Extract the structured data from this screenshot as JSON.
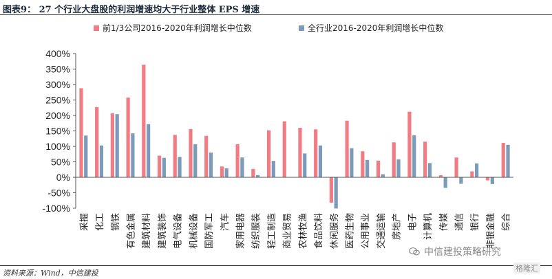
{
  "header": {
    "title": "图表9： 27 个行业大盘股的利润增速均大于行业整体 EPS 增速"
  },
  "footer": {
    "source": "资料来源：Wind，中信建投",
    "watermark": "中信建投策略研究",
    "gelonghui": "格隆汇"
  },
  "colors": {
    "series1": "#f27c84",
    "series2": "#7b9bb8"
  },
  "chart_data": {
    "type": "bar",
    "title": "",
    "xlabel": "",
    "ylabel": "",
    "ylim": [
      -100,
      400
    ],
    "yticks": [
      -100,
      -50,
      0,
      50,
      100,
      150,
      200,
      250,
      300,
      350,
      400
    ],
    "ytick_labels": [
      "-100%",
      "-50%",
      "0%",
      "50%",
      "100%",
      "150%",
      "200%",
      "250%",
      "300%",
      "350%",
      "400%"
    ],
    "grid": false,
    "legend_position": "top",
    "categories": [
      "采掘",
      "化工",
      "钢铁",
      "有色金属",
      "建筑材料",
      "建筑装饰",
      "电气设备",
      "机械设备",
      "国防军工",
      "汽车",
      "家用电器",
      "纺织服装",
      "轻工制造",
      "商业贸易",
      "农林牧渔",
      "食品饮料",
      "休闲服务",
      "医药生物",
      "公用事业",
      "交通运输",
      "房地产",
      "电子",
      "计算机",
      "传媒",
      "通信",
      "银行",
      "非银金融",
      "综合"
    ],
    "series": [
      {
        "name": "前1/3公司2016-2020年利润增长中位数",
        "values": [
          288,
          227,
          207,
          258,
          364,
          70,
          137,
          156,
          134,
          35,
          107,
          27,
          152,
          181,
          160,
          155,
          -82,
          183,
          84,
          54,
          113,
          212,
          115,
          7,
          64,
          19,
          -10,
          111
        ]
      },
      {
        "name": "全行业2016-2020年利润增长中位数",
        "values": [
          135,
          103,
          204,
          142,
          172,
          63,
          66,
          107,
          80,
          29,
          64,
          7,
          53,
          0,
          77,
          103,
          -101,
          94,
          56,
          10,
          58,
          136,
          46,
          -34,
          -21,
          45,
          -22,
          105
        ]
      }
    ]
  }
}
